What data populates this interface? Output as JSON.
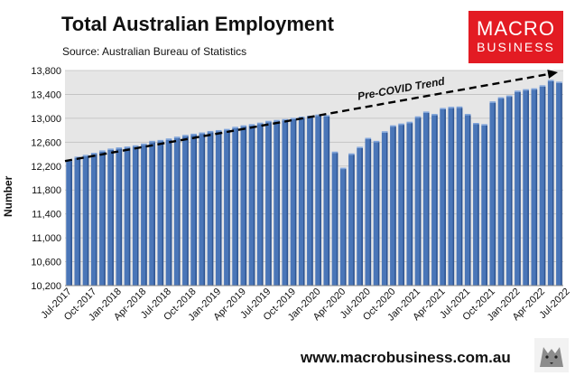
{
  "header": {
    "title": "Total Australian Employment",
    "subtitle": "Source: Australian Bureau of Statistics"
  },
  "logo": {
    "line1": "MACRO",
    "line2": "BUSINESS"
  },
  "footer": {
    "url": "www.macrobusiness.com.au"
  },
  "colors": {
    "bar": "#4a76b8",
    "plot_bg": "#e6e6e6",
    "logo_bg": "#e31b23",
    "trend": "#000000"
  },
  "chart_data": {
    "type": "bar",
    "ylabel": "Number",
    "ylim": [
      10200,
      13800
    ],
    "yticks": [
      "10,200",
      "10,600",
      "11,000",
      "11,400",
      "11,800",
      "12,200",
      "12,600",
      "13,000",
      "13,400",
      "13,800"
    ],
    "ytick_values": [
      10200,
      10600,
      11000,
      11400,
      11800,
      12200,
      12600,
      13000,
      13400,
      13800
    ],
    "grid": true,
    "start_month": "Jul-2017",
    "xtick_labels": [
      "Jul-2017",
      "Oct-2017",
      "Jan-2018",
      "Apr-2018",
      "Jul-2018",
      "Oct-2018",
      "Jan-2019",
      "Apr-2019",
      "Jul-2019",
      "Oct-2019",
      "Jan-2020",
      "Apr-2020",
      "Jul-2020",
      "Oct-2020",
      "Jan-2021",
      "Apr-2021",
      "Jul-2021",
      "Oct-2021",
      "Jan-2022",
      "Apr-2022",
      "Jul-2022"
    ],
    "values": [
      12285,
      12335,
      12365,
      12400,
      12440,
      12470,
      12490,
      12505,
      12525,
      12555,
      12600,
      12615,
      12640,
      12670,
      12700,
      12720,
      12740,
      12765,
      12780,
      12800,
      12835,
      12860,
      12880,
      12905,
      12935,
      12950,
      12965,
      12985,
      13005,
      13020,
      13040,
      13030,
      12420,
      12150,
      12390,
      12500,
      12650,
      12600,
      12760,
      12860,
      12890,
      12920,
      13010,
      13090,
      13050,
      13150,
      13170,
      13175,
      13050,
      12900,
      12880,
      13260,
      13330,
      13360,
      13440,
      13465,
      13480,
      13530,
      13620,
      13590
    ],
    "annotation": {
      "text": "Pre-COVID Trend",
      "type": "dashed-arrow",
      "from_value": 12285,
      "to_value": 13770
    }
  }
}
